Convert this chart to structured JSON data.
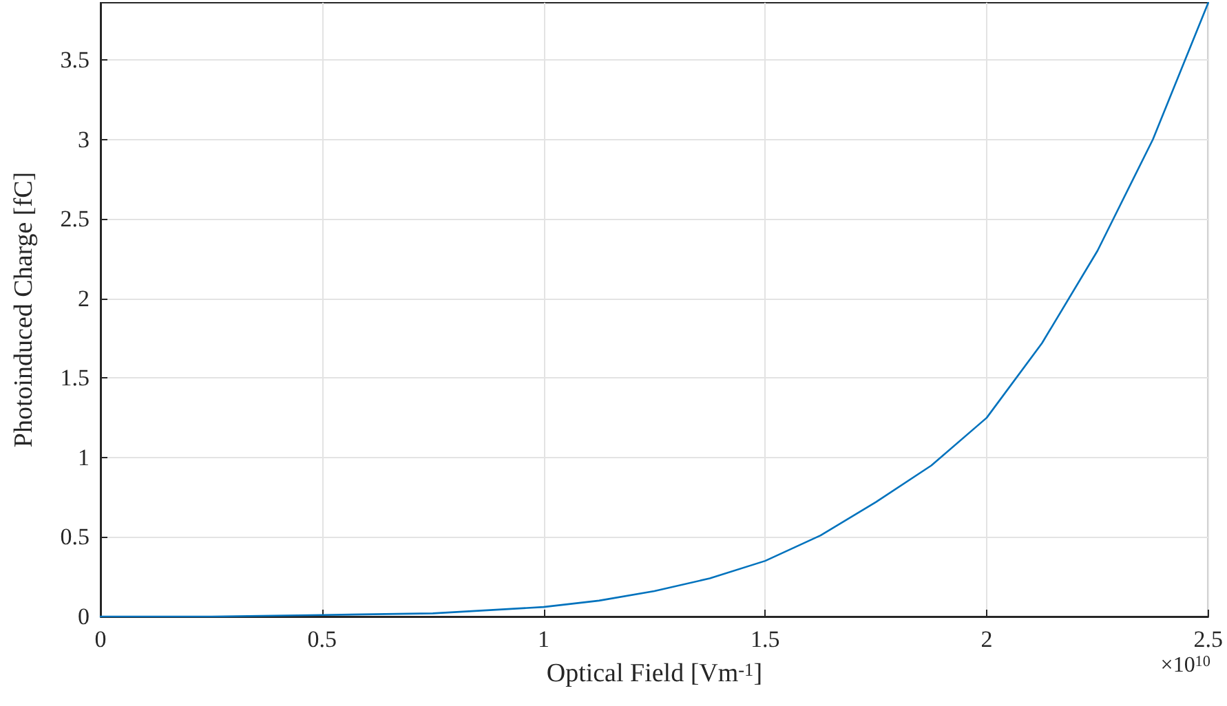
{
  "chart_data": {
    "type": "line",
    "xlabel": "Optical Field [Vm$^{-1}$]",
    "ylabel": "Photoinduced Charge [fC]",
    "annotations": [
      "×10$^{10}$"
    ],
    "x": [
      0,
      0.25,
      0.5,
      0.75,
      1,
      1.125,
      1.25,
      1.375,
      1.5,
      1.625,
      1.75,
      1.875,
      2,
      2.125,
      2.25,
      2.375,
      2.5
    ],
    "series": [
      {
        "color": "#0072bd",
        "values": [
          0,
          0,
          0.01,
          0.02,
          0.06,
          0.1,
          0.16,
          0.24,
          0.35,
          0.51,
          0.72,
          0.95,
          1.25,
          1.72,
          2.3,
          3.0,
          3.86
        ]
      }
    ],
    "xlim": [
      0,
      2.5
    ],
    "xticks": [
      0,
      0.5,
      1,
      1.5,
      2,
      2.5
    ],
    "ylim": [
      0,
      3.86
    ],
    "yticks": [
      0,
      0.5,
      1,
      1.5,
      2,
      2.5,
      3,
      3.5
    ],
    "grid": true,
    "marker": "none",
    "line_style": "solid"
  }
}
